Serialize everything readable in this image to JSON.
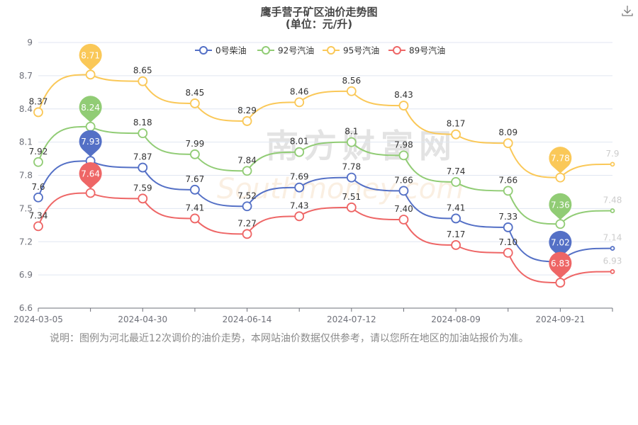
{
  "title": "鹰手营子矿区油价走势图",
  "subtitle": "(单位：元/升)",
  "note": "说明：图例为河北最近12次调价的油价走势，本网站油价数据仅供参考，请以您所在地区的加油站报价为准。",
  "watermark": {
    "main": "南方财富网",
    "sub": "Southmoney.com"
  },
  "icons": {
    "download": "download-icon"
  },
  "chart_data": {
    "type": "line",
    "title": "鹰手营子矿区油价走势图",
    "subtitle": "(单位：元/升)",
    "x_ticks": [
      "2024-03-05",
      "2024-04-30",
      "2024-06-14",
      "2024-07-12",
      "2024-08-09",
      "2024-09-21"
    ],
    "ylim": [
      6.6,
      9
    ],
    "y_ticks": [
      "6.6",
      "6.9",
      "7.2",
      "7.5",
      "7.8",
      "8.1",
      "8.4",
      "8.7",
      "9"
    ],
    "grid": true,
    "legend_position": "top-center",
    "series": [
      {
        "name": "0号柴油",
        "color": "#5470c6",
        "values": [
          7.6,
          7.93,
          7.87,
          7.67,
          7.52,
          7.69,
          7.78,
          7.66,
          7.41,
          7.33,
          7.02,
          7.14
        ],
        "labels": [
          "7.6",
          "7.93",
          "7.87",
          "7.67",
          "7.52",
          "7.69",
          "7.78",
          "7.66",
          "7.41",
          "7.33",
          "7.02",
          "7.14"
        ],
        "max_marker": "7.93",
        "min_marker": "7.02"
      },
      {
        "name": "92号汽油",
        "color": "#91cc75",
        "values": [
          7.92,
          8.24,
          8.18,
          7.99,
          7.84,
          8.01,
          8.1,
          7.98,
          7.74,
          7.66,
          7.36,
          7.48
        ],
        "labels": [
          "7.92",
          "8.24",
          "8.18",
          "7.99",
          "7.84",
          "8.01",
          "8.1",
          "7.98",
          "7.74",
          "7.66",
          "7.36",
          "7.48"
        ],
        "max_marker": "8.24",
        "min_marker": "7.36"
      },
      {
        "name": "95号汽油",
        "color": "#fac858",
        "values": [
          8.37,
          8.71,
          8.65,
          8.45,
          8.29,
          8.46,
          8.56,
          8.43,
          8.17,
          8.09,
          7.78,
          7.9
        ],
        "labels": [
          "8.37",
          "8.71",
          "8.65",
          "8.45",
          "8.29",
          "8.46",
          "8.56",
          "8.43",
          "8.17",
          "8.09",
          "7.78",
          "7.9"
        ],
        "max_marker": "8.71",
        "min_marker": "7.78"
      },
      {
        "name": "89号汽油",
        "color": "#ee6666",
        "values": [
          7.34,
          7.64,
          7.59,
          7.41,
          7.27,
          7.43,
          7.51,
          7.4,
          7.17,
          7.1,
          6.83,
          6.93
        ],
        "labels": [
          "7.34",
          "7.64",
          "7.59",
          "7.41",
          "7.27",
          "7.43",
          "7.51",
          "7.40",
          "7.17",
          "7.10",
          "6.83",
          "6.93"
        ],
        "max_marker": "7.64",
        "min_marker": "6.83"
      }
    ]
  }
}
